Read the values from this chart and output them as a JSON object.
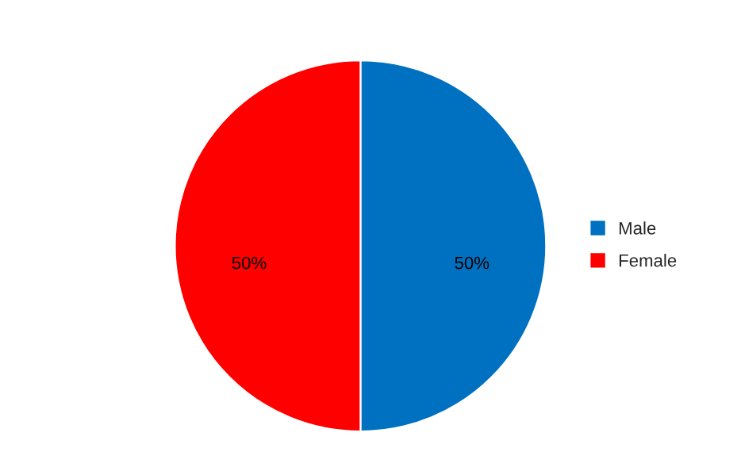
{
  "chart_data": {
    "type": "pie",
    "categories": [
      "Male",
      "Female"
    ],
    "values": [
      50,
      50
    ],
    "colors": [
      "#0070c0",
      "#ff0000"
    ],
    "value_labels": [
      "50%",
      "50%"
    ],
    "legend": "right"
  }
}
